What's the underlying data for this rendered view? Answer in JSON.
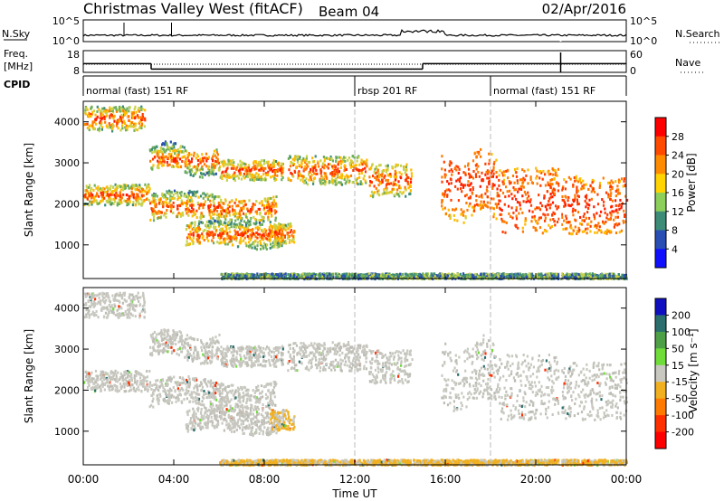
{
  "header": {
    "title": "Christmas Valley West (fitACF)",
    "beam": "Beam 04",
    "date": "02/Apr/2016"
  },
  "strip": {
    "nsky_label": "N.Sky",
    "nsky_ticks": [
      "10^5",
      "10^0"
    ],
    "nsearch_label": "N.Search",
    "nsearch_ticks": [
      "10^5",
      "10^0"
    ],
    "freq_label_1": "Freq.",
    "freq_label_2": "[MHz]",
    "freq_ticks": [
      "18",
      "8"
    ],
    "nave_label": "Nave",
    "nave_ticks": [
      "60",
      "0"
    ],
    "cpid_label": "CPID",
    "cpid_segments": [
      {
        "label": "normal (fast) 151 RF",
        "start_hour": 0,
        "end_hour": 12
      },
      {
        "label": "rbsp 201 RF",
        "start_hour": 12,
        "end_hour": 18
      },
      {
        "label": "normal (fast) 151 RF",
        "start_hour": 18,
        "end_hour": 24
      }
    ],
    "freq_mhz_segments": [
      {
        "start_hour": 0,
        "end_hour": 3.0,
        "value": 12.0
      },
      {
        "start_hour": 3.0,
        "end_hour": 15.0,
        "value": 9.5
      },
      {
        "start_hour": 15.0,
        "end_hour": 21.0,
        "value": 12.0
      },
      {
        "start_hour": 21.0,
        "end_hour": 24.0,
        "value": 12.0
      }
    ]
  },
  "chart_data": [
    {
      "type": "heatmap",
      "name": "Power",
      "xlabel": "Time UT",
      "ylabel": "Slant Range [km]",
      "xlim_hours": [
        0,
        24
      ],
      "ylim": [
        180,
        4500
      ],
      "x_ticks": [
        "00:00",
        "04:00",
        "08:00",
        "12:00",
        "16:00",
        "20:00",
        "00:00"
      ],
      "x_tick_hours": [
        0,
        4,
        8,
        12,
        16,
        20,
        24
      ],
      "y_ticks": [
        1000,
        2000,
        3000,
        4000
      ],
      "y_tick_labels": [
        "1000",
        "2000",
        "3000",
        "4000"
      ],
      "colorbar": {
        "label": "Power [dB]",
        "ticks": [
          "28",
          "24",
          "20",
          "16",
          "12",
          "8",
          "4"
        ],
        "colors": [
          "#ff0000",
          "#ff4a00",
          "#ff8c00",
          "#ffd400",
          "#8ccf5a",
          "#3c8c78",
          "#2a4fb4",
          "#1010ff"
        ]
      }
    },
    {
      "type": "heatmap",
      "name": "Velocity",
      "xlabel": "Time UT",
      "ylabel": "Slant Range [km]",
      "xlim_hours": [
        0,
        24
      ],
      "ylim": [
        180,
        4500
      ],
      "x_ticks": [
        "00:00",
        "04:00",
        "08:00",
        "12:00",
        "16:00",
        "20:00",
        "00:00"
      ],
      "x_tick_hours": [
        0,
        4,
        8,
        12,
        16,
        20,
        24
      ],
      "y_ticks": [
        1000,
        2000,
        3000,
        4000
      ],
      "y_tick_labels": [
        "1000",
        "2000",
        "3000",
        "4000"
      ],
      "colorbar": {
        "label": "Velocity [m s⁻¹]",
        "ticks": [
          "200",
          "100",
          "50",
          "15",
          "-15",
          "-50",
          "-100",
          "-200"
        ],
        "colors": [
          "#1010c0",
          "#2a6e6e",
          "#4ea046",
          "#6fdc3a",
          "#c8c8c0",
          "#f0b020",
          "#ff7a00",
          "#ff3000",
          "#ff0000"
        ]
      }
    }
  ],
  "bands": [
    {
      "t0": 0.0,
      "t1": 2.9,
      "r0": 2000,
      "r1": 2500,
      "peak": 1800,
      "slope": 0
    },
    {
      "t0": 2.9,
      "t1": 6.0,
      "r0": 2800,
      "r1": 3400,
      "slope": 150
    },
    {
      "t0": 6.0,
      "t1": 8.8,
      "r0": 2600,
      "r1": 3100,
      "slope": 0
    },
    {
      "t0": 2.9,
      "t1": 8.5,
      "r0": 1600,
      "r1": 2250,
      "slope": 120
    },
    {
      "t0": 4.5,
      "t1": 8.8,
      "r0": 1000,
      "r1": 1550,
      "slope": 80
    },
    {
      "t0": 8.2,
      "t1": 9.3,
      "r0": 1050,
      "r1": 1550,
      "slope": 0
    },
    {
      "t0": 0.0,
      "t1": 2.7,
      "r0": 3800,
      "r1": 4400,
      "slope": 0
    },
    {
      "t0": 9.0,
      "t1": 12.5,
      "r0": 2500,
      "r1": 3200,
      "slope": 0
    },
    {
      "t0": 12.6,
      "t1": 14.5,
      "r0": 2200,
      "r1": 3000,
      "slope": 0
    },
    {
      "t0": 15.8,
      "t1": 18.3,
      "r0": 1800,
      "r1": 3300,
      "slope": -250
    },
    {
      "t0": 18.3,
      "t1": 21.0,
      "r0": 1300,
      "r1": 2900,
      "slope": 0
    },
    {
      "t0": 21.1,
      "t1": 24.0,
      "r0": 1300,
      "r1": 2700,
      "slope": 0
    },
    {
      "t0": 6.0,
      "t1": 24.0,
      "r0": 200,
      "r1": 330,
      "slope": 0
    }
  ]
}
